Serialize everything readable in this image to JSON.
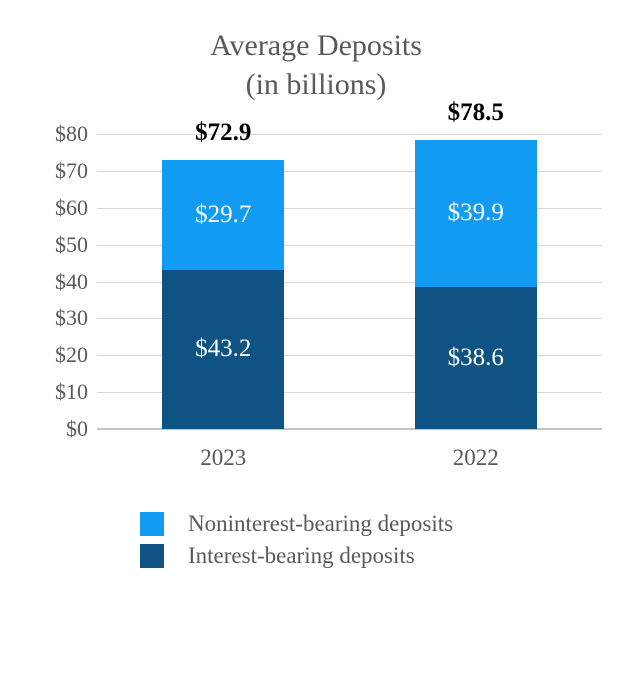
{
  "chart_data": {
    "type": "bar",
    "stacked": true,
    "title": "Average Deposits",
    "subtitle": "(in billions)",
    "categories": [
      "2023",
      "2022"
    ],
    "series": [
      {
        "name": "Noninterest-bearing deposits",
        "color": "#119BF2",
        "values": [
          29.7,
          39.9
        ],
        "data_labels": [
          "$29.7",
          "$39.9"
        ]
      },
      {
        "name": "Interest-bearing deposits",
        "color": "#0F5284",
        "values": [
          43.2,
          38.6
        ],
        "data_labels": [
          "$43.2",
          "$38.6"
        ]
      }
    ],
    "totals": [
      72.9,
      78.5
    ],
    "total_labels": [
      "$72.9",
      "$78.5"
    ],
    "ylim": [
      0,
      80
    ],
    "y_tick_interval": 10,
    "y_tick_labels": [
      "$0",
      "$10",
      "$20",
      "$30",
      "$40",
      "$50",
      "$60",
      "$70",
      "$80"
    ],
    "grid": true,
    "legend_position": "bottom-left"
  },
  "colors": {
    "background": "#FFFFFF",
    "title_text": "#595959",
    "axis_text": "#595959",
    "gridline": "#D9D9D9",
    "axis_line": "#C3C3C3",
    "total_label_text": "#000000",
    "segment_label_text": "#FFFFFF"
  }
}
